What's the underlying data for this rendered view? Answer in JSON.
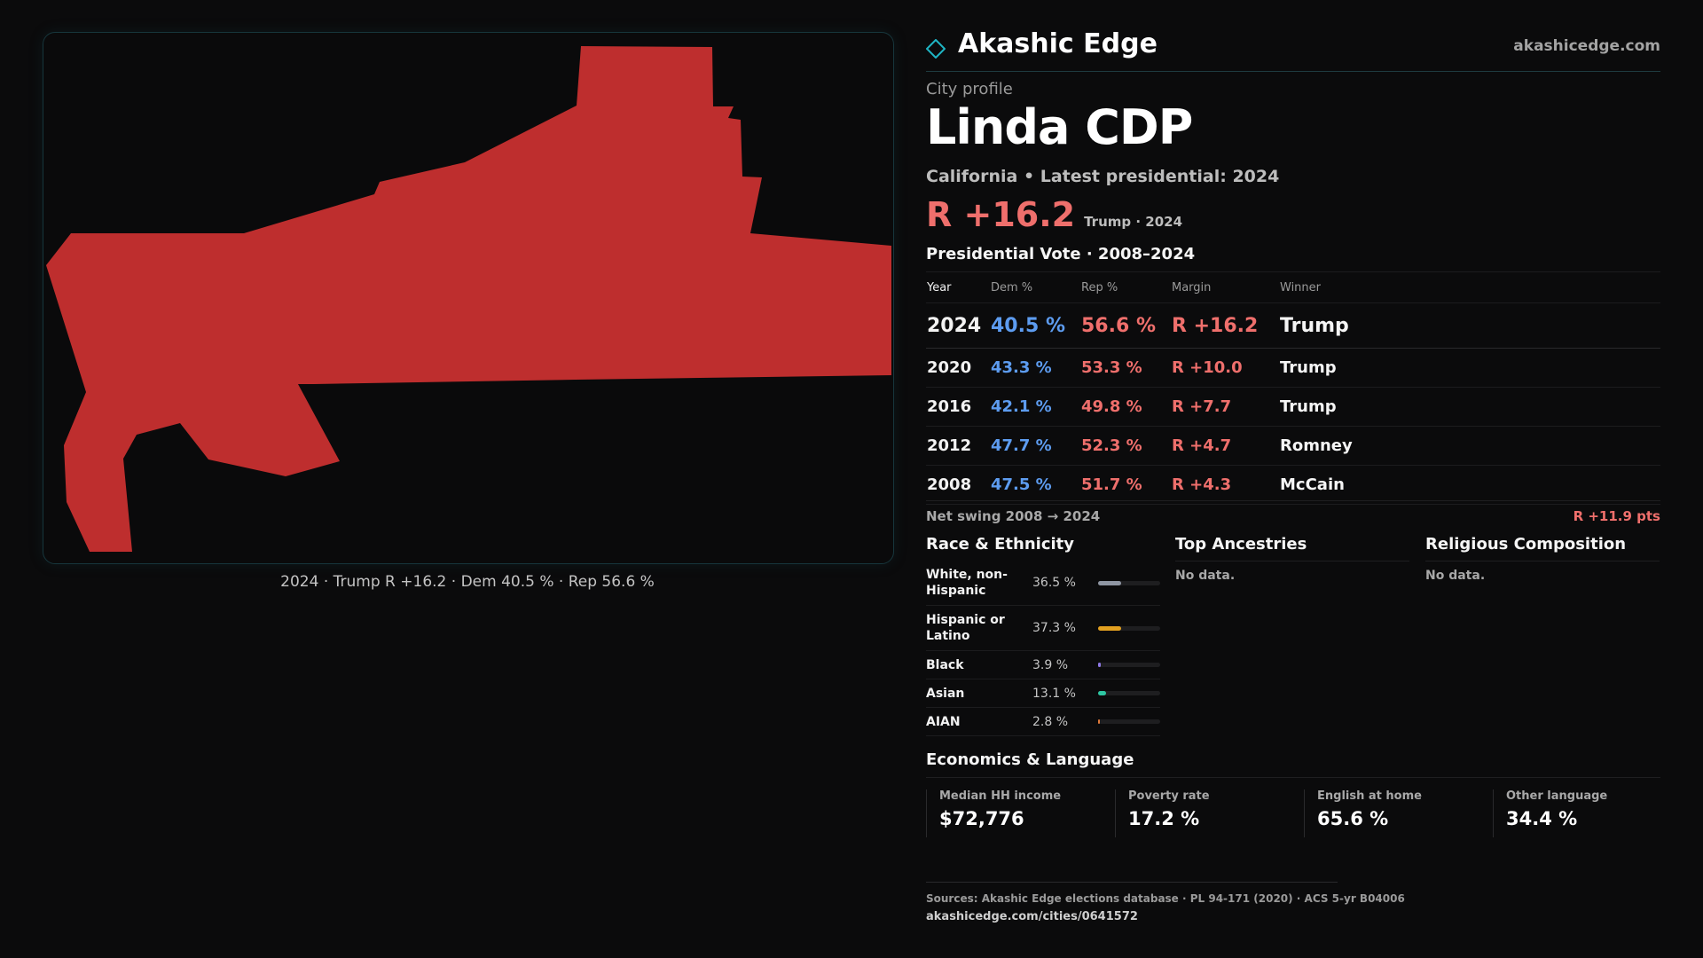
{
  "brand": {
    "name": "Akashic Edge",
    "url": "akashicedge.com",
    "accent_color": "#1fb5c4"
  },
  "profile": {
    "kicker": "City profile",
    "city_name": "Linda CDP",
    "subtitle": "California • Latest presidential: 2024",
    "headline_margin": "R +16.2",
    "headline_winner": "Trump · 2024"
  },
  "map": {
    "fill_color": "#be2e2e",
    "caption": "2024 · Trump R +16.2 · Dem 40.5 % · Rep 56.6 %"
  },
  "presidential": {
    "title": "Presidential Vote · 2008–2024",
    "headers": [
      "Year",
      "Dem %",
      "Rep %",
      "Margin",
      "Winner"
    ],
    "rows": [
      {
        "year": "2024",
        "dem": "40.5 %",
        "rep": "56.6 %",
        "margin": "R +16.2",
        "winner": "Trump"
      },
      {
        "year": "2020",
        "dem": "43.3 %",
        "rep": "53.3 %",
        "margin": "R +10.0",
        "winner": "Trump"
      },
      {
        "year": "2016",
        "dem": "42.1 %",
        "rep": "49.8 %",
        "margin": "R +7.7",
        "winner": "Trump"
      },
      {
        "year": "2012",
        "dem": "47.7 %",
        "rep": "52.3 %",
        "margin": "R +4.7",
        "winner": "Romney"
      },
      {
        "year": "2008",
        "dem": "47.5 %",
        "rep": "51.7 %",
        "margin": "R +4.3",
        "winner": "McCain"
      }
    ],
    "swing_label": "Net swing 2008 → 2024",
    "swing_value": "R +11.9 pts"
  },
  "race": {
    "title": "Race & Ethnicity",
    "rows": [
      {
        "label": "White, non-Hispanic",
        "pct": "36.5 %",
        "share": 0.365,
        "color": "#8f96a3"
      },
      {
        "label": "Hispanic or Latino",
        "pct": "37.3 %",
        "share": 0.373,
        "color": "#e2a020"
      },
      {
        "label": "Black",
        "pct": "3.9 %",
        "share": 0.039,
        "color": "#8f7ae6"
      },
      {
        "label": "Asian",
        "pct": "13.1 %",
        "share": 0.131,
        "color": "#2ec7a3"
      },
      {
        "label": "AIAN",
        "pct": "2.8 %",
        "share": 0.028,
        "color": "#e07a3a"
      }
    ]
  },
  "ancestries": {
    "title": "Top Ancestries",
    "empty": "No data."
  },
  "religion": {
    "title": "Religious Composition",
    "empty": "No data."
  },
  "economics": {
    "title": "Economics & Language",
    "cells": [
      {
        "label": "Median HH income",
        "value": "$72,776"
      },
      {
        "label": "Poverty rate",
        "value": "17.2 %"
      },
      {
        "label": "English at home",
        "value": "65.6 %"
      },
      {
        "label": "Other language",
        "value": "34.4 %"
      }
    ]
  },
  "footer": {
    "sources": "Sources: Akashic Edge elections database · PL 94-171 (2020) · ACS 5-yr B04006",
    "page_url": "akashicedge.com/cities/0641572"
  }
}
